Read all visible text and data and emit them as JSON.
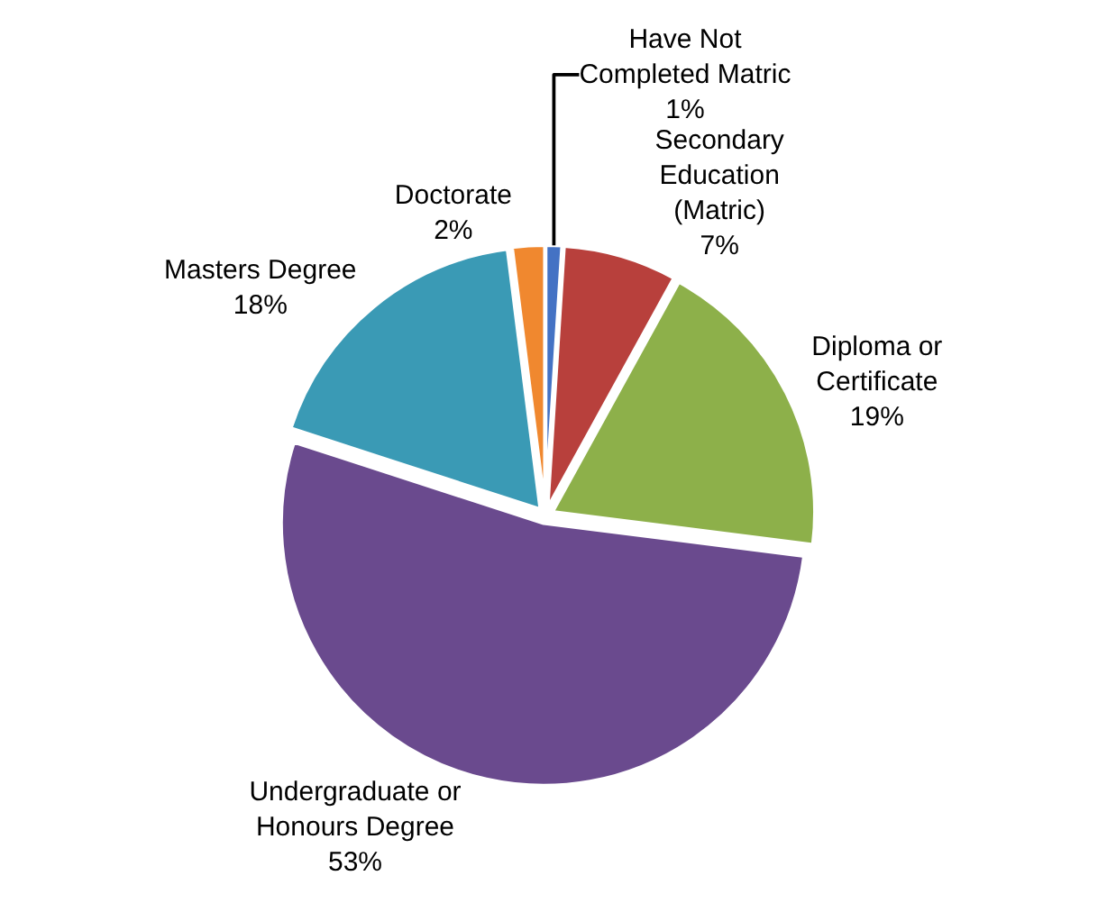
{
  "chart_data": {
    "type": "pie",
    "categories": [
      "Have Not Completed Matric",
      "Secondary Education (Matric)",
      "Diploma or Certificate",
      "Undergraduate or Honours Degree",
      "Masters Degree",
      "Doctorate"
    ],
    "values": [
      1,
      7,
      19,
      53,
      18,
      2
    ],
    "value_labels": [
      "1%",
      "7%",
      "19%",
      "53%",
      "18%",
      "2%"
    ],
    "colors": [
      "#4472c4",
      "#b8403c",
      "#8db04a",
      "#6a4a8e",
      "#3a9ab5",
      "#f0882f"
    ],
    "legend": false
  }
}
